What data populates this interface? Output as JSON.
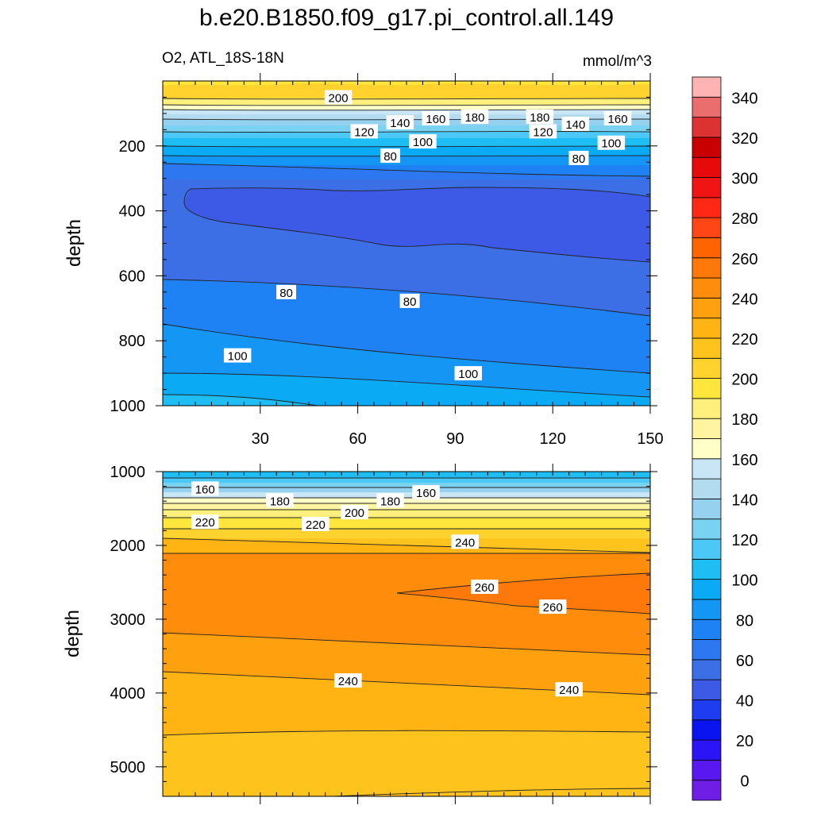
{
  "title": "b.e20.B1850.f09_g17.pi_control.all.149",
  "subtitle_left": "O2, ATL_18S-18N",
  "subtitle_right": "mmol/m^3",
  "chart_data": [
    {
      "type": "contour",
      "panel": "upper",
      "title": "b.e20.B1850.f09_g17.pi_control.all.149",
      "variable": "O2",
      "region": "ATL_18S-18N",
      "units": "mmol/m^3",
      "xlabel": "",
      "ylabel": "depth",
      "xlim": [
        0,
        150
      ],
      "ylim": [
        1000,
        0
      ],
      "xticks": [
        30,
        60,
        90,
        120,
        150
      ],
      "yticks": [
        200,
        400,
        600,
        800,
        1000
      ],
      "contour_labels": [
        {
          "text": "200",
          "x": 54,
          "y": 50
        },
        {
          "text": "160",
          "x": 84,
          "y": 115
        },
        {
          "text": "180",
          "x": 96,
          "y": 110
        },
        {
          "text": "180",
          "x": 116,
          "y": 110
        },
        {
          "text": "160",
          "x": 140,
          "y": 115
        },
        {
          "text": "140",
          "x": 73,
          "y": 127
        },
        {
          "text": "140",
          "x": 127,
          "y": 132
        },
        {
          "text": "120",
          "x": 62,
          "y": 155
        },
        {
          "text": "120",
          "x": 117,
          "y": 155
        },
        {
          "text": "100",
          "x": 80,
          "y": 186
        },
        {
          "text": "100",
          "x": 138,
          "y": 190
        },
        {
          "text": "80",
          "x": 70,
          "y": 230
        },
        {
          "text": "80",
          "x": 128,
          "y": 237
        },
        {
          "text": "80",
          "x": 38,
          "y": 650
        },
        {
          "text": "80",
          "x": 76,
          "y": 677
        },
        {
          "text": "100",
          "x": 23,
          "y": 845
        },
        {
          "text": "100",
          "x": 94,
          "y": 900
        }
      ]
    },
    {
      "type": "contour",
      "panel": "lower",
      "variable": "O2",
      "units": "mmol/m^3",
      "xlabel": "",
      "ylabel": "depth",
      "xlim": [
        0,
        150
      ],
      "ylim": [
        5400,
        1000
      ],
      "yticks": [
        1000,
        2000,
        3000,
        4000,
        5000
      ],
      "contour_labels": [
        {
          "text": "160",
          "x": 13,
          "y": 1230
        },
        {
          "text": "180",
          "x": 36,
          "y": 1390
        },
        {
          "text": "180",
          "x": 70,
          "y": 1390
        },
        {
          "text": "160",
          "x": 81,
          "y": 1280
        },
        {
          "text": "200",
          "x": 59,
          "y": 1550
        },
        {
          "text": "220",
          "x": 13,
          "y": 1680
        },
        {
          "text": "220",
          "x": 47,
          "y": 1710
        },
        {
          "text": "240",
          "x": 93,
          "y": 1950
        },
        {
          "text": "260",
          "x": 99,
          "y": 2560
        },
        {
          "text": "260",
          "x": 120,
          "y": 2830
        },
        {
          "text": "240",
          "x": 57,
          "y": 3830
        },
        {
          "text": "240",
          "x": 125,
          "y": 3950
        }
      ]
    },
    {
      "type": "colorbar",
      "levels": [
        0,
        20,
        40,
        60,
        80,
        100,
        120,
        140,
        160,
        180,
        200,
        220,
        240,
        260,
        280,
        300,
        320,
        340
      ],
      "labeled_levels": [
        0,
        20,
        40,
        60,
        80,
        100,
        120,
        140,
        160,
        180,
        200,
        220,
        240,
        260,
        280,
        300,
        320,
        340
      ],
      "colors": [
        "#6f1ee6",
        "#5a18f0",
        "#2b14f5",
        "#0a14f0",
        "#1e3cf0",
        "#3c5ae6",
        "#3c6ee6",
        "#2d78f0",
        "#1e82f5",
        "#1496f5",
        "#0aaaf5",
        "#1ebef5",
        "#4bc8f5",
        "#78d2f0",
        "#96d2f0",
        "#b4dcf0",
        "#c8e6f5",
        "#ffffc8",
        "#fff5a0",
        "#fff07d",
        "#ffe63c",
        "#ffd22d",
        "#ffc31e",
        "#ffb414",
        "#ffa00f",
        "#ff8c0a",
        "#ff780a",
        "#ff6400",
        "#ff4614",
        "#ff2814",
        "#f01414",
        "#e60a0a",
        "#c80000",
        "#dc3232",
        "#eb6e6e",
        "#ffb4b4"
      ]
    }
  ]
}
